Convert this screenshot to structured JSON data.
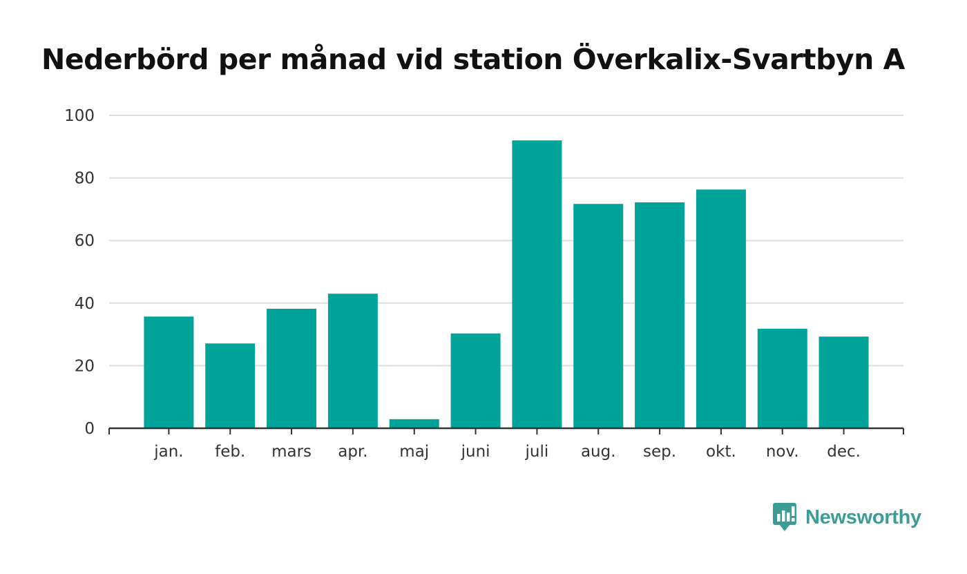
{
  "brand": {
    "name": "Newsworthy",
    "color": "#3a9e96",
    "icon": "newsworthy-bar-chart-logo"
  },
  "chart_data": {
    "type": "bar",
    "title": "Nederbörd per månad vid station Överkalix-Svartbyn A",
    "xlabel": "",
    "ylabel": "",
    "categories": [
      "jan.",
      "feb.",
      "mars",
      "apr.",
      "maj",
      "juni",
      "juli",
      "aug.",
      "sep.",
      "okt.",
      "nov.",
      "dec."
    ],
    "values": [
      35.7,
      27.1,
      38.2,
      43.0,
      2.9,
      30.3,
      92.0,
      71.7,
      72.2,
      76.3,
      31.8,
      29.3
    ],
    "ylim": [
      0,
      100
    ],
    "yticks": [
      0,
      20,
      40,
      60,
      80,
      100
    ],
    "grid": true,
    "legend": "none",
    "bar_color": "#00a499",
    "grid_color": "#dddddd",
    "axis_color": "#333333"
  }
}
